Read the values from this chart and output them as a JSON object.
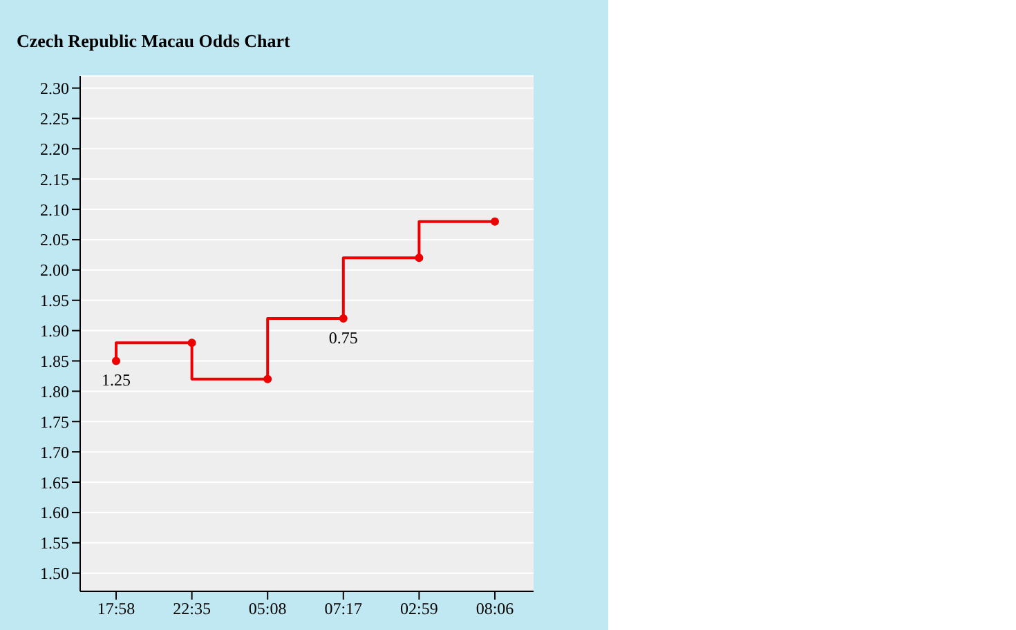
{
  "chart_data": {
    "type": "step",
    "title": "Czech Republic Macau Odds Chart",
    "categories": [
      "17:58",
      "22:35",
      "05:08",
      "07:17",
      "02:59",
      "08:06"
    ],
    "series": [
      {
        "color": "#ee0000",
        "values": [
          1.85,
          1.88,
          1.82,
          1.92,
          2.02,
          2.08
        ]
      }
    ],
    "ylim": [
      1.47,
      2.32
    ],
    "yticks": [
      {
        "value": 1.5,
        "label": "1.50"
      },
      {
        "value": 1.55,
        "label": "1.55"
      },
      {
        "value": 1.6,
        "label": "1.60"
      },
      {
        "value": 1.65,
        "label": "1.65"
      },
      {
        "value": 1.7,
        "label": "1.70"
      },
      {
        "value": 1.75,
        "label": "1.75"
      },
      {
        "value": 1.8,
        "label": "1.80"
      },
      {
        "value": 1.85,
        "label": "1.85"
      },
      {
        "value": 1.9,
        "label": "1.90"
      },
      {
        "value": 1.95,
        "label": "1.95"
      },
      {
        "value": 2.0,
        "label": "2.00"
      },
      {
        "value": 2.05,
        "label": "2.05"
      },
      {
        "value": 2.1,
        "label": "2.10"
      },
      {
        "value": 2.15,
        "label": "2.15"
      },
      {
        "value": 2.2,
        "label": "2.20"
      },
      {
        "value": 2.25,
        "label": "2.25"
      },
      {
        "value": 2.3,
        "label": "2.30"
      }
    ],
    "annotations": [
      {
        "text": "1.25",
        "x": "17:58",
        "y": 1.85
      },
      {
        "text": "0.75",
        "x": "07:17",
        "y": 1.92
      }
    ],
    "grid": "y",
    "marker": "circle",
    "legend": false
  }
}
